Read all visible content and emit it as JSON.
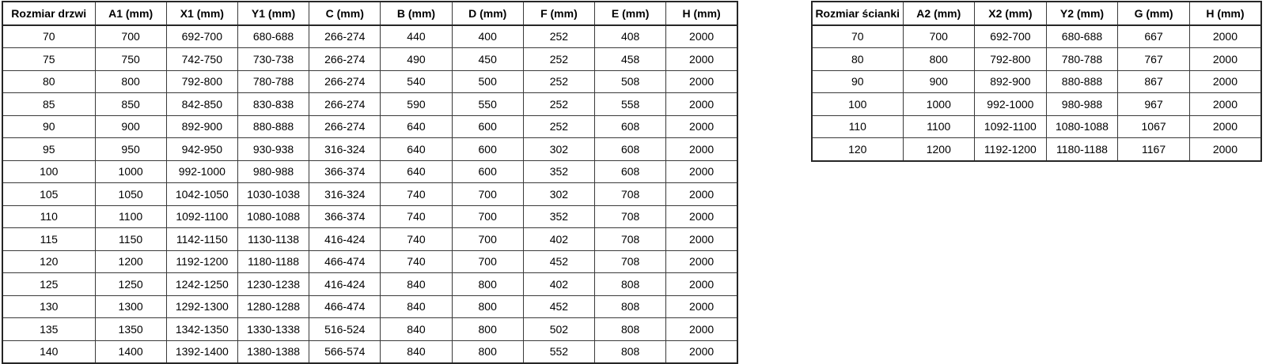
{
  "colors": {
    "background": "#ffffff",
    "border": "#2b2b2b",
    "text": "#000000"
  },
  "door_table": {
    "headers": [
      "Rozmiar drzwi",
      "A1 (mm)",
      "X1 (mm)",
      "Y1 (mm)",
      "C (mm)",
      "B (mm)",
      "D (mm)",
      "F (mm)",
      "E (mm)",
      "H (mm)"
    ],
    "rows": [
      [
        "70",
        "700",
        "692-700",
        "680-688",
        "266-274",
        "440",
        "400",
        "252",
        "408",
        "2000"
      ],
      [
        "75",
        "750",
        "742-750",
        "730-738",
        "266-274",
        "490",
        "450",
        "252",
        "458",
        "2000"
      ],
      [
        "80",
        "800",
        "792-800",
        "780-788",
        "266-274",
        "540",
        "500",
        "252",
        "508",
        "2000"
      ],
      [
        "85",
        "850",
        "842-850",
        "830-838",
        "266-274",
        "590",
        "550",
        "252",
        "558",
        "2000"
      ],
      [
        "90",
        "900",
        "892-900",
        "880-888",
        "266-274",
        "640",
        "600",
        "252",
        "608",
        "2000"
      ],
      [
        "95",
        "950",
        "942-950",
        "930-938",
        "316-324",
        "640",
        "600",
        "302",
        "608",
        "2000"
      ],
      [
        "100",
        "1000",
        "992-1000",
        "980-988",
        "366-374",
        "640",
        "600",
        "352",
        "608",
        "2000"
      ],
      [
        "105",
        "1050",
        "1042-1050",
        "1030-1038",
        "316-324",
        "740",
        "700",
        "302",
        "708",
        "2000"
      ],
      [
        "110",
        "1100",
        "1092-1100",
        "1080-1088",
        "366-374",
        "740",
        "700",
        "352",
        "708",
        "2000"
      ],
      [
        "115",
        "1150",
        "1142-1150",
        "1130-1138",
        "416-424",
        "740",
        "700",
        "402",
        "708",
        "2000"
      ],
      [
        "120",
        "1200",
        "1192-1200",
        "1180-1188",
        "466-474",
        "740",
        "700",
        "452",
        "708",
        "2000"
      ],
      [
        "125",
        "1250",
        "1242-1250",
        "1230-1238",
        "416-424",
        "840",
        "800",
        "402",
        "808",
        "2000"
      ],
      [
        "130",
        "1300",
        "1292-1300",
        "1280-1288",
        "466-474",
        "840",
        "800",
        "452",
        "808",
        "2000"
      ],
      [
        "135",
        "1350",
        "1342-1350",
        "1330-1338",
        "516-524",
        "840",
        "800",
        "502",
        "808",
        "2000"
      ],
      [
        "140",
        "1400",
        "1392-1400",
        "1380-1388",
        "566-574",
        "840",
        "800",
        "552",
        "808",
        "2000"
      ]
    ]
  },
  "wall_table": {
    "headers": [
      "Rozmiar ścianki",
      "A2 (mm)",
      "X2 (mm)",
      "Y2 (mm)",
      "G (mm)",
      "H (mm)"
    ],
    "rows": [
      [
        "70",
        "700",
        "692-700",
        "680-688",
        "667",
        "2000"
      ],
      [
        "80",
        "800",
        "792-800",
        "780-788",
        "767",
        "2000"
      ],
      [
        "90",
        "900",
        "892-900",
        "880-888",
        "867",
        "2000"
      ],
      [
        "100",
        "1000",
        "992-1000",
        "980-988",
        "967",
        "2000"
      ],
      [
        "110",
        "1100",
        "1092-1100",
        "1080-1088",
        "1067",
        "2000"
      ],
      [
        "120",
        "1200",
        "1192-1200",
        "1180-1188",
        "1167",
        "2000"
      ]
    ]
  }
}
